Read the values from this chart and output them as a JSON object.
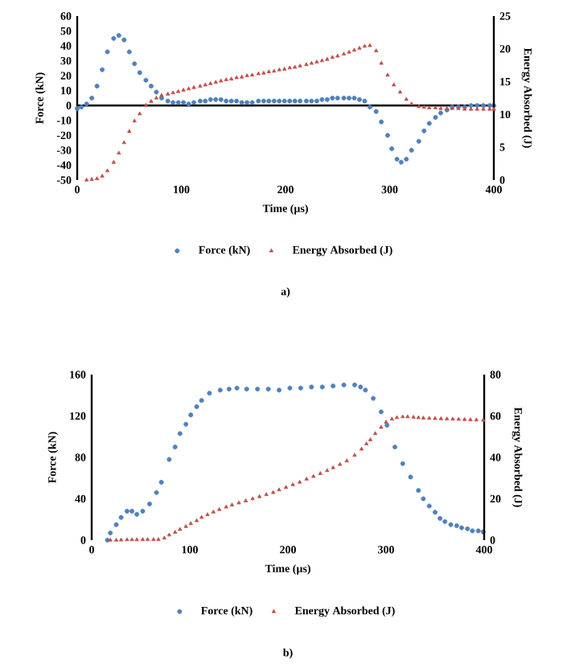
{
  "chart_data": [
    {
      "type": "scatter",
      "xlabel": "Time (µs)",
      "ylabel": "Force (kN)",
      "y2label": "Energy Absorbed (J)",
      "xlim": [
        0,
        400
      ],
      "xticks": [
        0,
        100,
        200,
        300,
        400
      ],
      "ylim": [
        -50,
        60
      ],
      "yticks": [
        -50,
        -40,
        -30,
        -20,
        -10,
        0,
        10,
        20,
        30,
        40,
        50,
        60
      ],
      "y2lim": [
        0,
        25
      ],
      "y2ticks": [
        0,
        5,
        10,
        15,
        20,
        25
      ],
      "legend": "bottom",
      "grid": false,
      "ref_lines": [
        {
          "axis": "y",
          "value": 0,
          "color": "#000000"
        }
      ],
      "annotations": [
        "a)"
      ],
      "series": [
        {
          "name": "Force (kN)",
          "color": "#4f81bd",
          "marker": "circle",
          "x": [
            0,
            4,
            9,
            14,
            19,
            24,
            29,
            35,
            40,
            45,
            50,
            55,
            60,
            66,
            71,
            76,
            81,
            87,
            92,
            97,
            102,
            107,
            112,
            118,
            123,
            128,
            133,
            138,
            143,
            148,
            153,
            158,
            163,
            168,
            174,
            179,
            184,
            189,
            194,
            199,
            204,
            209,
            214,
            220,
            225,
            230,
            235,
            240,
            245,
            250,
            256,
            261,
            266,
            271,
            276,
            281,
            287,
            292,
            298,
            302,
            307,
            311,
            316,
            321,
            328,
            333,
            338,
            344,
            349,
            355,
            360,
            366,
            372,
            378,
            384,
            390,
            396,
            400
          ],
          "values": [
            -2,
            -1,
            1,
            5,
            13,
            24,
            36,
            45,
            47,
            44,
            36,
            28,
            22,
            17,
            13,
            9,
            5,
            3,
            2,
            2,
            2,
            1,
            2,
            3,
            3,
            4,
            4,
            4,
            3,
            3,
            3,
            2,
            2,
            2,
            3,
            3,
            3,
            3,
            3,
            3,
            3,
            3,
            3,
            3,
            3,
            3,
            4,
            4,
            5,
            5,
            5,
            5,
            5,
            4,
            3,
            -1,
            -4,
            -11,
            -20,
            -29,
            -36,
            -38,
            -36,
            -30,
            -24,
            -17,
            -12,
            -8,
            -5,
            -3,
            -1,
            -1,
            -1,
            0,
            0,
            0,
            0,
            0
          ]
        },
        {
          "name": "Energy Absorbed (J)",
          "color": "#c0504d",
          "marker": "triangle",
          "axis": "y2",
          "x": [
            9,
            14,
            19,
            24,
            29,
            35,
            40,
            45,
            50,
            55,
            60,
            66,
            71,
            76,
            81,
            87,
            92,
            97,
            102,
            107,
            112,
            118,
            123,
            128,
            133,
            138,
            143,
            148,
            153,
            158,
            163,
            168,
            174,
            179,
            184,
            189,
            194,
            199,
            204,
            209,
            214,
            220,
            225,
            230,
            235,
            240,
            245,
            250,
            256,
            261,
            266,
            271,
            276,
            281,
            287,
            292,
            298,
            304,
            310,
            316,
            321,
            328,
            333,
            338,
            344,
            349,
            355,
            360,
            366,
            372,
            378,
            384,
            390,
            396,
            400
          ],
          "values": [
            0,
            0.1,
            0.2,
            0.6,
            1.4,
            2.7,
            4.1,
            5.7,
            7.4,
            9.0,
            10.1,
            11.4,
            12.0,
            12.5,
            12.9,
            13.1,
            13.3,
            13.5,
            13.7,
            13.9,
            14.1,
            14.3,
            14.5,
            14.7,
            14.9,
            15.1,
            15.3,
            15.4,
            15.6,
            15.7,
            15.9,
            16.0,
            16.2,
            16.3,
            16.5,
            16.6,
            16.8,
            16.9,
            17.1,
            17.2,
            17.4,
            17.6,
            17.8,
            18.0,
            18.2,
            18.4,
            18.7,
            18.9,
            19.2,
            19.5,
            19.8,
            20.1,
            20.4,
            20.5,
            19.7,
            17.8,
            16.0,
            14.5,
            13.4,
            12.3,
            11.6,
            11.2,
            11.1,
            11.0,
            11.0,
            10.9,
            10.9,
            10.9,
            10.9,
            10.8,
            10.8,
            10.8,
            10.8,
            10.8,
            10.8
          ]
        }
      ]
    },
    {
      "type": "scatter",
      "xlabel": "Time (µs)",
      "ylabel": "Force (kN)",
      "y2label": "Energy Absorbed (J)",
      "xlim": [
        0,
        400
      ],
      "xticks": [
        0,
        100,
        200,
        300,
        400
      ],
      "ylim": [
        0,
        160
      ],
      "yticks": [
        0,
        40,
        80,
        120,
        160
      ],
      "y2lim": [
        0,
        80
      ],
      "y2ticks": [
        0,
        20,
        40,
        60,
        80
      ],
      "legend": "bottom",
      "grid": false,
      "annotations": [
        "b)"
      ],
      "series": [
        {
          "name": "Force (kN)",
          "color": "#4f81bd",
          "marker": "circle",
          "x": [
            16,
            19,
            25,
            30,
            36,
            41,
            46,
            52,
            59,
            66,
            71,
            79,
            85,
            90,
            96,
            101,
            107,
            112,
            120,
            131,
            140,
            148,
            158,
            169,
            180,
            191,
            202,
            213,
            224,
            235,
            246,
            257,
            268,
            274,
            279,
            287,
            295,
            301,
            309,
            317,
            325,
            333,
            338,
            344,
            350,
            355,
            360,
            366,
            372,
            377,
            383,
            388,
            394,
            399
          ],
          "values": [
            0,
            7,
            15,
            22,
            28,
            28,
            25,
            28,
            35,
            46,
            56,
            78,
            90,
            103,
            112,
            121,
            129,
            135,
            142,
            145,
            146,
            147,
            146,
            146,
            146,
            145,
            147,
            147,
            148,
            148,
            149,
            150,
            150,
            148,
            145,
            137,
            124,
            111,
            90,
            74,
            61,
            48,
            40,
            33,
            27,
            21,
            18,
            15,
            14,
            12,
            11,
            9,
            9,
            8
          ]
        },
        {
          "name": "Energy Absorbed (J)",
          "color": "#c0504d",
          "marker": "triangle",
          "axis": "y2",
          "x": [
            19,
            25,
            30,
            36,
            41,
            46,
            52,
            57,
            63,
            68,
            74,
            79,
            85,
            90,
            96,
            101,
            107,
            112,
            118,
            124,
            130,
            137,
            143,
            150,
            157,
            164,
            171,
            178,
            185,
            191,
            198,
            205,
            212,
            219,
            226,
            233,
            240,
            246,
            253,
            260,
            268,
            275,
            280,
            284,
            289,
            295,
            300,
            306,
            311,
            317,
            322,
            328,
            333,
            338,
            344,
            350,
            356,
            362,
            368,
            374,
            380,
            386,
            392,
            399
          ],
          "values": [
            0,
            0,
            0.1,
            0.2,
            0.2,
            0.2,
            0.3,
            0.3,
            0.3,
            0.3,
            1.0,
            2.5,
            3.8,
            5.2,
            6.6,
            8.0,
            9.4,
            11.0,
            12.3,
            13.6,
            14.8,
            16.0,
            17.0,
            18.0,
            19.0,
            20.0,
            21.0,
            22.0,
            23.0,
            24.3,
            25.5,
            26.8,
            28.0,
            29.5,
            30.8,
            32.2,
            33.6,
            35.0,
            36.6,
            38.3,
            41.0,
            44.0,
            46.5,
            48.5,
            51.5,
            54.5,
            57.0,
            58.5,
            59.2,
            59.6,
            59.6,
            59.4,
            59.2,
            59.0,
            58.9,
            58.8,
            58.7,
            58.6,
            58.5,
            58.4,
            58.3,
            58.2,
            58.1,
            58.0
          ]
        }
      ]
    }
  ]
}
